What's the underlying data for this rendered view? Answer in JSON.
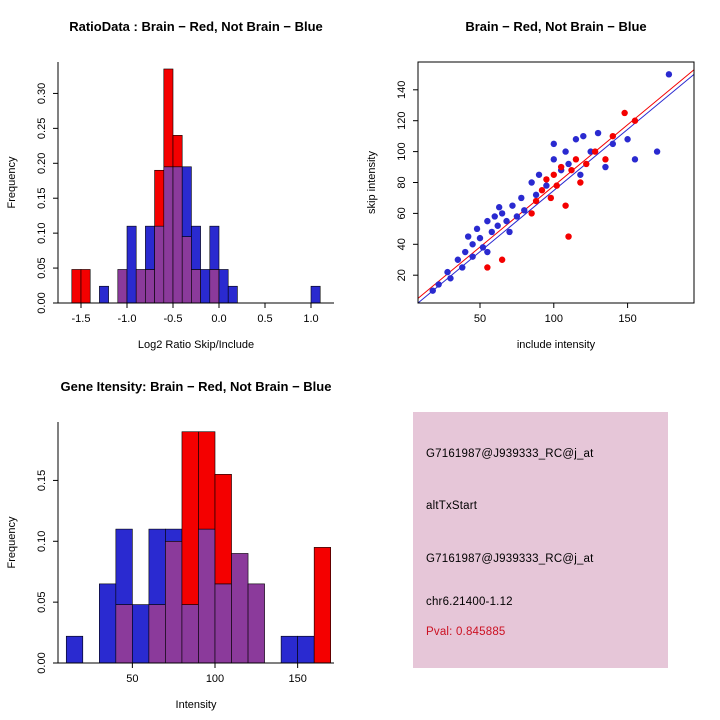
{
  "colors": {
    "red": "#f40000",
    "blue": "#2a2ad0",
    "overlap_purple": "#8b3a9b",
    "info_box_bg": "#e6c6d8",
    "pval_text": "#cc1122",
    "axis": "#000000"
  },
  "chart_data": [
    {
      "id": "ratio-hist",
      "type": "bar",
      "title": "RatioData : Brain − Red, Not Brain − Blue",
      "xlabel": "Log2 Ratio Skip/Include",
      "ylabel": "Frequency",
      "xlim": [
        -1.75,
        1.25
      ],
      "ylim": [
        0,
        0.345
      ],
      "xtick_values": [
        -1.5,
        -1.0,
        -0.5,
        0.0,
        0.5,
        1.0
      ],
      "xtick_labels": [
        "-1.5",
        "-1.0",
        "-0.5",
        "0.0",
        "0.5",
        "1.0"
      ],
      "ytick_values": [
        0,
        0.05,
        0.1,
        0.15,
        0.2,
        0.25,
        0.3
      ],
      "ytick_labels": [
        "0.00",
        "0.05",
        "0.10",
        "0.15",
        "0.20",
        "0.25",
        "0.30"
      ],
      "grid": false,
      "legend": "none (colors explained in title)",
      "bin_start": -1.6,
      "bin_width": 0.1,
      "series": [
        {
          "name": "Brain",
          "color_key": "red",
          "values": [
            0.048,
            0.048,
            0,
            0,
            0,
            0.048,
            0,
            0.048,
            0.048,
            0.19,
            0.335,
            0.24,
            0.095,
            0.048,
            0,
            0.048,
            0,
            0,
            0,
            0,
            0,
            0,
            0,
            0,
            0,
            0,
            0
          ]
        },
        {
          "name": "Not Brain",
          "color_key": "blue",
          "values": [
            0,
            0,
            0,
            0.024,
            0,
            0.048,
            0.11,
            0.048,
            0.11,
            0.11,
            0.195,
            0.195,
            0.195,
            0.11,
            0.048,
            0.11,
            0.048,
            0.024,
            0,
            0,
            0,
            0,
            0,
            0,
            0,
            0,
            0.024
          ]
        }
      ]
    },
    {
      "id": "scatter",
      "type": "scatter",
      "title": "Brain − Red, Not Brain − Blue",
      "xlabel": "include intensity",
      "ylabel": "skip intensity",
      "xlim": [
        8,
        195
      ],
      "ylim": [
        2,
        158
      ],
      "xtick_values": [
        50,
        100,
        150
      ],
      "xtick_labels": [
        "50",
        "100",
        "150"
      ],
      "ytick_values": [
        20,
        40,
        60,
        80,
        100,
        120,
        140
      ],
      "ytick_labels": [
        "20",
        "40",
        "60",
        "80",
        "100",
        "120",
        "140"
      ],
      "grid": false,
      "legend": "none (colors explained in title)",
      "series": [
        {
          "name": "Not Brain",
          "color_key": "blue",
          "points": [
            [
              18,
              10
            ],
            [
              22,
              14
            ],
            [
              28,
              22
            ],
            [
              30,
              18
            ],
            [
              35,
              30
            ],
            [
              38,
              25
            ],
            [
              40,
              35
            ],
            [
              42,
              45
            ],
            [
              45,
              40
            ],
            [
              45,
              32
            ],
            [
              48,
              50
            ],
            [
              50,
              44
            ],
            [
              52,
              38
            ],
            [
              55,
              55
            ],
            [
              55,
              35
            ],
            [
              58,
              48
            ],
            [
              60,
              58
            ],
            [
              62,
              52
            ],
            [
              63,
              64
            ],
            [
              65,
              60
            ],
            [
              68,
              55
            ],
            [
              70,
              48
            ],
            [
              72,
              65
            ],
            [
              75,
              58
            ],
            [
              78,
              70
            ],
            [
              80,
              62
            ],
            [
              85,
              80
            ],
            [
              88,
              72
            ],
            [
              90,
              85
            ],
            [
              95,
              78
            ],
            [
              100,
              95
            ],
            [
              100,
              105
            ],
            [
              105,
              88
            ],
            [
              108,
              100
            ],
            [
              110,
              92
            ],
            [
              115,
              108
            ],
            [
              118,
              85
            ],
            [
              120,
              110
            ],
            [
              125,
              100
            ],
            [
              130,
              112
            ],
            [
              135,
              90
            ],
            [
              140,
              105
            ],
            [
              150,
              108
            ],
            [
              155,
              95
            ],
            [
              170,
              100
            ],
            [
              178,
              150
            ]
          ]
        },
        {
          "name": "Brain",
          "color_key": "red",
          "points": [
            [
              55,
              25
            ],
            [
              65,
              30
            ],
            [
              85,
              60
            ],
            [
              88,
              68
            ],
            [
              92,
              75
            ],
            [
              95,
              82
            ],
            [
              98,
              70
            ],
            [
              100,
              85
            ],
            [
              102,
              78
            ],
            [
              105,
              90
            ],
            [
              108,
              65
            ],
            [
              110,
              45
            ],
            [
              112,
              88
            ],
            [
              115,
              95
            ],
            [
              118,
              80
            ],
            [
              122,
              92
            ],
            [
              128,
              100
            ],
            [
              135,
              95
            ],
            [
              140,
              110
            ],
            [
              148,
              125
            ],
            [
              155,
              120
            ]
          ]
        }
      ],
      "lines": [
        {
          "name": "blue-fit-line",
          "color_key": "blue",
          "x1": 8,
          "y1": 2,
          "x2": 195,
          "y2": 150
        },
        {
          "name": "red-fit-line",
          "color_key": "red",
          "x1": 8,
          "y1": 5,
          "x2": 195,
          "y2": 153
        }
      ]
    },
    {
      "id": "intensity-hist",
      "type": "bar",
      "title": "Gene Itensity: Brain − Red, Not Brain − Blue",
      "xlabel": "Intensity",
      "ylabel": "Frequency",
      "xlim": [
        5,
        172
      ],
      "ylim": [
        0,
        0.198
      ],
      "xtick_values": [
        50,
        100,
        150
      ],
      "xtick_labels": [
        "50",
        "100",
        "150"
      ],
      "ytick_values": [
        0,
        0.05,
        0.1,
        0.15
      ],
      "ytick_labels": [
        "0.00",
        "0.05",
        "0.10",
        "0.15"
      ],
      "grid": false,
      "legend": "none (colors explained in title)",
      "bin_start": 10,
      "bin_width": 10,
      "series": [
        {
          "name": "Brain",
          "color_key": "red",
          "values": [
            0,
            0,
            0,
            0.048,
            0,
            0.048,
            0.1,
            0.19,
            0.19,
            0.155,
            0.09,
            0.065,
            0,
            0,
            0,
            0.095
          ]
        },
        {
          "name": "Not Brain",
          "color_key": "blue",
          "values": [
            0.022,
            0,
            0.065,
            0.11,
            0.048,
            0.11,
            0.11,
            0.048,
            0.11,
            0.065,
            0.09,
            0.065,
            0,
            0.022,
            0.022,
            0
          ]
        }
      ]
    }
  ],
  "info_box": {
    "lines": [
      "G7161987@J939333_RC@j_at",
      "altTxStart",
      "G7161987@J939333_RC@j_at",
      "chr6.21400-1.12",
      "Pval: 0.845885"
    ]
  }
}
